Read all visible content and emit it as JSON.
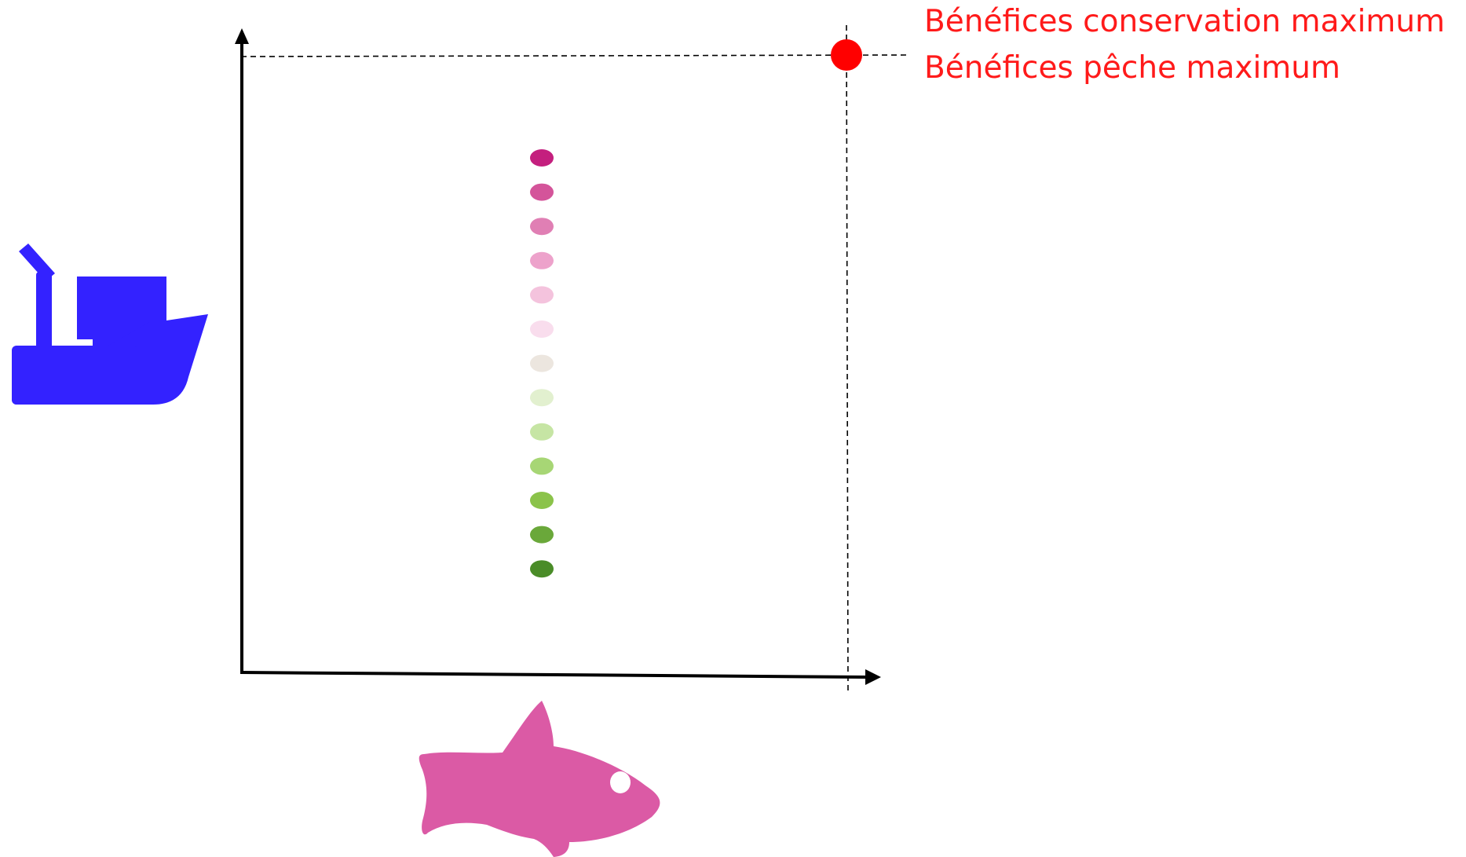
{
  "annotation": {
    "line1": "Bénéfices conservation maximum",
    "line2": "Bénéfices pêche maximum",
    "color": "#ff0000"
  },
  "colors": {
    "axis": "#000000",
    "guide": "#000000",
    "max_point": "#ff0000",
    "boat_icon": "#3322ff",
    "fish_icon": "#db5aa5"
  },
  "icons": {
    "y_axis": "fishing-boat-icon",
    "x_axis": "fish-icon"
  },
  "dot_scale": [
    "#c41f7e",
    "#d4549a",
    "#e07fb4",
    "#eda2cb",
    "#f4c3dd",
    "#f9dded",
    "#ece6df",
    "#e2f0cf",
    "#c6e5a4",
    "#a7d675",
    "#8bc34a",
    "#6aa83a",
    "#4a8c28"
  ]
}
